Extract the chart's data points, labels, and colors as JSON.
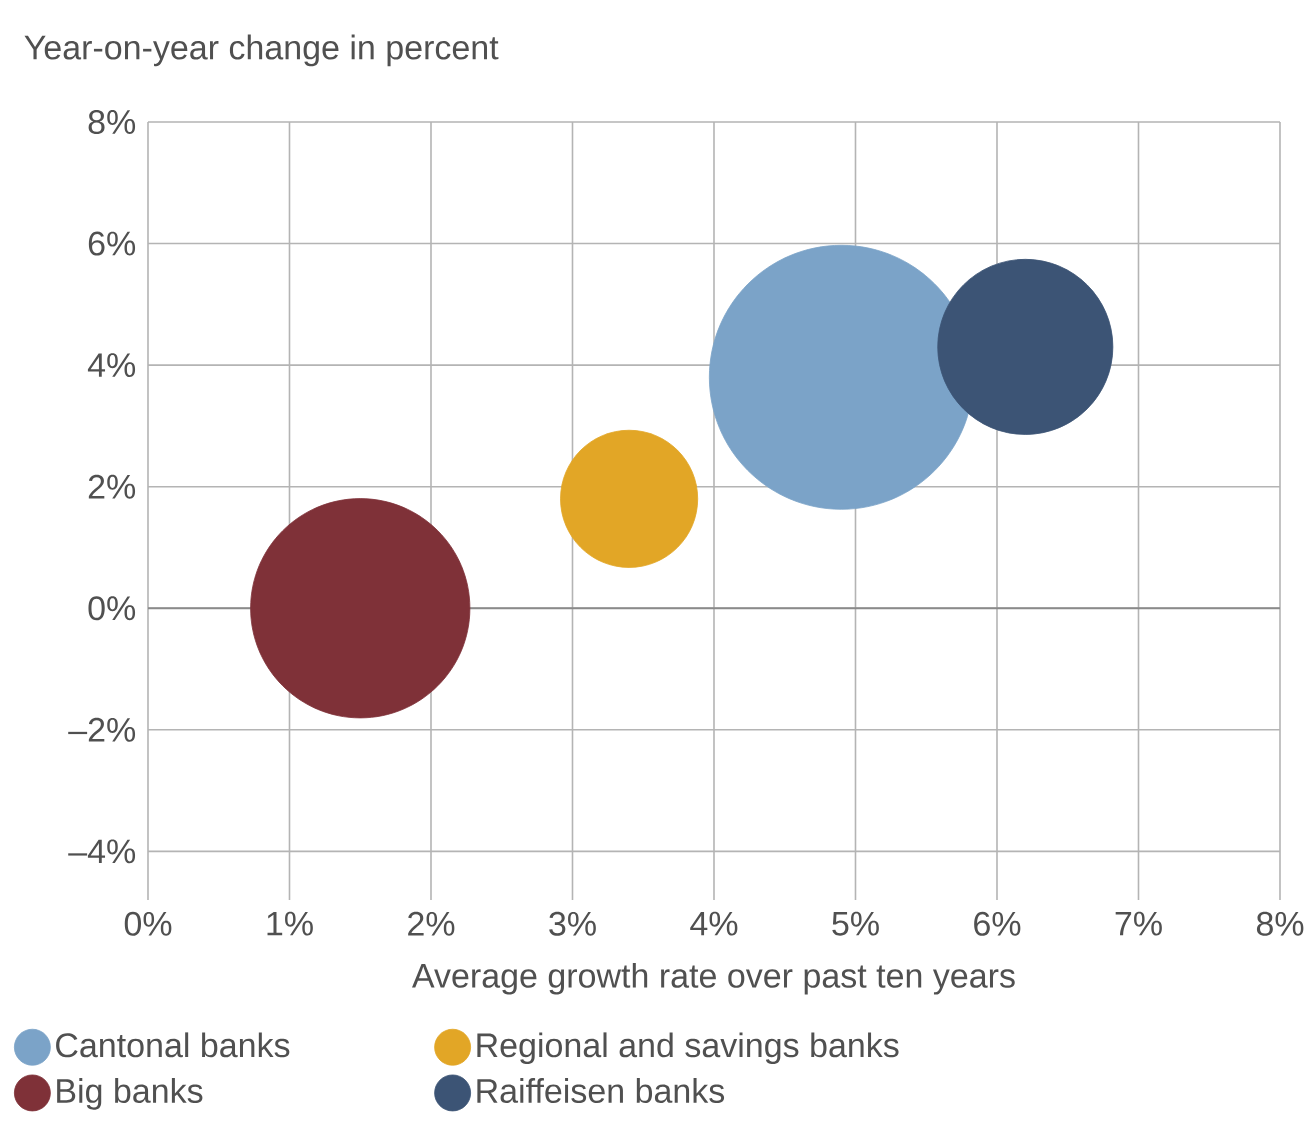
{
  "chart_data": {
    "type": "bubble",
    "xlabel": "Average growth rate over past ten years",
    "ylabel": "Year-on-year change in percent",
    "series": [
      {
        "name": "Cantonal banks",
        "color": "#7ba3c8",
        "x": [
          4.9
        ],
        "values": [
          3.8
        ],
        "sizes": [
          1
        ]
      },
      {
        "name": "Regional and savings banks",
        "color": "#e2a626",
        "x": [
          3.4
        ],
        "values": [
          1.8
        ],
        "sizes": [
          0.27
        ]
      },
      {
        "name": "Big banks",
        "color": "#7f3138",
        "x": [
          1.5
        ],
        "values": [
          0
        ],
        "sizes": [
          0.69
        ]
      },
      {
        "name": "Raiffeisen banks",
        "color": "#3c5475",
        "x": [
          6.2
        ],
        "values": [
          4.3
        ],
        "sizes": [
          0.44
        ]
      }
    ],
    "xlim": [
      0,
      8
    ],
    "ylim": [
      -4.8,
      8
    ],
    "xticks": [
      {
        "value": 0,
        "label": "0%"
      },
      {
        "value": 1,
        "label": "1%"
      },
      {
        "value": 2,
        "label": "2%"
      },
      {
        "value": 3,
        "label": "3%"
      },
      {
        "value": 4,
        "label": "4%"
      },
      {
        "value": 5,
        "label": "5%"
      },
      {
        "value": 6,
        "label": "6%"
      },
      {
        "value": 7,
        "label": "7%"
      },
      {
        "value": 8,
        "label": "8%"
      }
    ],
    "yticks": [
      {
        "value": -4,
        "label": "–4%"
      },
      {
        "value": -2,
        "label": "–2%"
      },
      {
        "value": 0,
        "label": "0%"
      },
      {
        "value": 2,
        "label": "2%"
      },
      {
        "value": 4,
        "label": "4%"
      },
      {
        "value": 6,
        "label": "6%"
      },
      {
        "value": 8,
        "label": "8%"
      }
    ],
    "ref_lines": [
      {
        "axis": "y",
        "value": 0,
        "color": "#8a8a8a"
      }
    ],
    "grid": true,
    "legend": "bottom"
  }
}
